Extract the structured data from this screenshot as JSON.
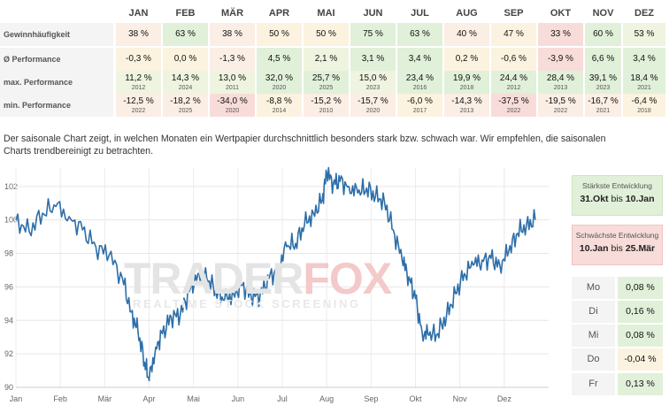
{
  "table": {
    "months": [
      "JAN",
      "FEB",
      "MÄR",
      "APR",
      "MAI",
      "JUN",
      "JUL",
      "AUG",
      "SEP",
      "OKT",
      "NOV",
      "DEZ"
    ],
    "rows": [
      {
        "label": "Gewinnhäufigkeit",
        "values": [
          "38 %",
          "63 %",
          "38 %",
          "50 %",
          "50 %",
          "75 %",
          "63 %",
          "40 %",
          "47 %",
          "33 %",
          "60 %",
          "53 %"
        ],
        "colors": [
          "#fbeee5",
          "#e1f0d9",
          "#fbeee5",
          "#fbf3df",
          "#fbf3df",
          "#e1f0d9",
          "#e1f0d9",
          "#fbeee5",
          "#fbf3df",
          "#f8dcd9",
          "#e1f0d9",
          "#eef4df"
        ]
      },
      {
        "label": "Ø Performance",
        "values": [
          "-0,3 %",
          "0,0 %",
          "-1,3 %",
          "4,5 %",
          "2,1 %",
          "3,1 %",
          "3,4 %",
          "0,2 %",
          "-0,6 %",
          "-3,9 %",
          "6,6 %",
          "3,4 %"
        ],
        "colors": [
          "#fbf3df",
          "#fbf3df",
          "#fbeee5",
          "#e1f0d9",
          "#eef4df",
          "#e1f0d9",
          "#e1f0d9",
          "#fbf3df",
          "#fbf3df",
          "#f8dcd9",
          "#e1f0d9",
          "#e1f0d9"
        ]
      },
      {
        "label": "max. Performance",
        "values": [
          "11,2 %",
          "14,3 %",
          "13,0 %",
          "32,0 %",
          "25,7 %",
          "15,0 %",
          "23,4 %",
          "19,9 %",
          "24,4 %",
          "28,4 %",
          "39,1 %",
          "18,4 %"
        ],
        "years": [
          "2012",
          "2024",
          "2011",
          "2020",
          "2025",
          "2023",
          "2016",
          "2018",
          "2012",
          "2013",
          "2023",
          "2021"
        ],
        "colors": [
          "#eef4df",
          "#eef4df",
          "#eef4df",
          "#e1f0d9",
          "#e1f0d9",
          "#eef4df",
          "#e1f0d9",
          "#e1f0d9",
          "#e1f0d9",
          "#e1f0d9",
          "#e1f0d9",
          "#e1f0d9"
        ]
      },
      {
        "label": "min. Performance",
        "values": [
          "-12,5 %",
          "-18,2 %",
          "-34,0 %",
          "-8,8 %",
          "-15,2 %",
          "-15,7 %",
          "-6,0 %",
          "-14,3 %",
          "-37,5 %",
          "-19,5 %",
          "-16,7 %",
          "-6,4 %"
        ],
        "years": [
          "2022",
          "2025",
          "2020",
          "2014",
          "2010",
          "2020",
          "2017",
          "2013",
          "2022",
          "2022",
          "2021",
          "2018"
        ],
        "colors": [
          "#fbeee5",
          "#fbeee5",
          "#f8dcd9",
          "#fbf3df",
          "#fbeee5",
          "#fbeee5",
          "#fbf3df",
          "#fbeee5",
          "#f8dcd9",
          "#fbeee5",
          "#fbeee5",
          "#fbf3df"
        ]
      }
    ]
  },
  "intro_text": "Der saisonale Chart zeigt, in welchen Monaten ein Wertpapier durchschnittlich besonders stark bzw. schwach war. Wir empfehlen, die saisonalen Charts trendbereinigt zu betrachten.",
  "watermark": {
    "brand_a": "TRADER",
    "brand_b": "FOX",
    "tagline": "REALTIME STOCK SCREENING"
  },
  "strongest": {
    "title": "Stärkste Entwicklung",
    "from": "31.Okt",
    "sep": "bis",
    "to": "10.Jan"
  },
  "weakest": {
    "title": "Schwächste Entwicklung",
    "from": "10.Jan",
    "sep": "bis",
    "to": "25.Mär"
  },
  "weekdays": [
    {
      "day": "Mo",
      "value": "0,08 %",
      "color": "#e1f0d9"
    },
    {
      "day": "Di",
      "value": "0,16 %",
      "color": "#e1f0d9"
    },
    {
      "day": "Mi",
      "value": "0,08 %",
      "color": "#e1f0d9"
    },
    {
      "day": "Do",
      "value": "-0,04 %",
      "color": "#fbf3df"
    },
    {
      "day": "Fr",
      "value": "0,13 %",
      "color": "#e1f0d9"
    }
  ],
  "chart_data": {
    "type": "line",
    "x_tick_labels": [
      "Jan",
      "Feb",
      "Mär",
      "Apr",
      "Mai",
      "Jun",
      "Jul",
      "Aug",
      "Sep",
      "Okt",
      "Nov",
      "Dez"
    ],
    "y_tick_labels": [
      "90",
      "92",
      "94",
      "96",
      "98",
      "100",
      "102"
    ],
    "ylim": [
      90,
      103.1
    ],
    "grid": true,
    "line_color": "#2d6ea8",
    "x": [
      0,
      0.3,
      0.6,
      0.9,
      1.2,
      1.5,
      1.8,
      2.1,
      2.4,
      2.6,
      2.75,
      2.9,
      3.0,
      3.15,
      3.3,
      3.5,
      3.7,
      3.9,
      4.1,
      4.3,
      4.5,
      4.7,
      4.9,
      5.1,
      5.3,
      5.5,
      5.7,
      5.9,
      6.1,
      6.3,
      6.5,
      6.7,
      6.9,
      7.0,
      7.15,
      7.3,
      7.5,
      7.7,
      7.9,
      8.1,
      8.3,
      8.5,
      8.7,
      8.85,
      9.0,
      9.15,
      9.3,
      9.5,
      9.7,
      9.9,
      10.1,
      10.3,
      10.5,
      10.7,
      10.9,
      11.1,
      11.3,
      11.5,
      11.7
    ],
    "values": [
      100,
      99.3,
      100.4,
      100.8,
      100.2,
      99.4,
      98.4,
      97.9,
      96.5,
      94.5,
      93.3,
      91.5,
      90.4,
      92.4,
      93.2,
      94.2,
      94.3,
      95.7,
      96.8,
      96.5,
      95.8,
      95.2,
      95.6,
      96.1,
      95.4,
      95.5,
      96.5,
      97.1,
      98.4,
      98.6,
      99.7,
      100.4,
      101.2,
      102.8,
      102.2,
      102.3,
      102.0,
      101.6,
      101.9,
      101.4,
      101.1,
      99.4,
      97.6,
      96.6,
      95.3,
      93.3,
      93.1,
      93.2,
      94.3,
      95.6,
      96.8,
      97.3,
      97.6,
      97.7,
      97.3,
      98.1,
      99.2,
      99.7,
      100.0
    ]
  }
}
